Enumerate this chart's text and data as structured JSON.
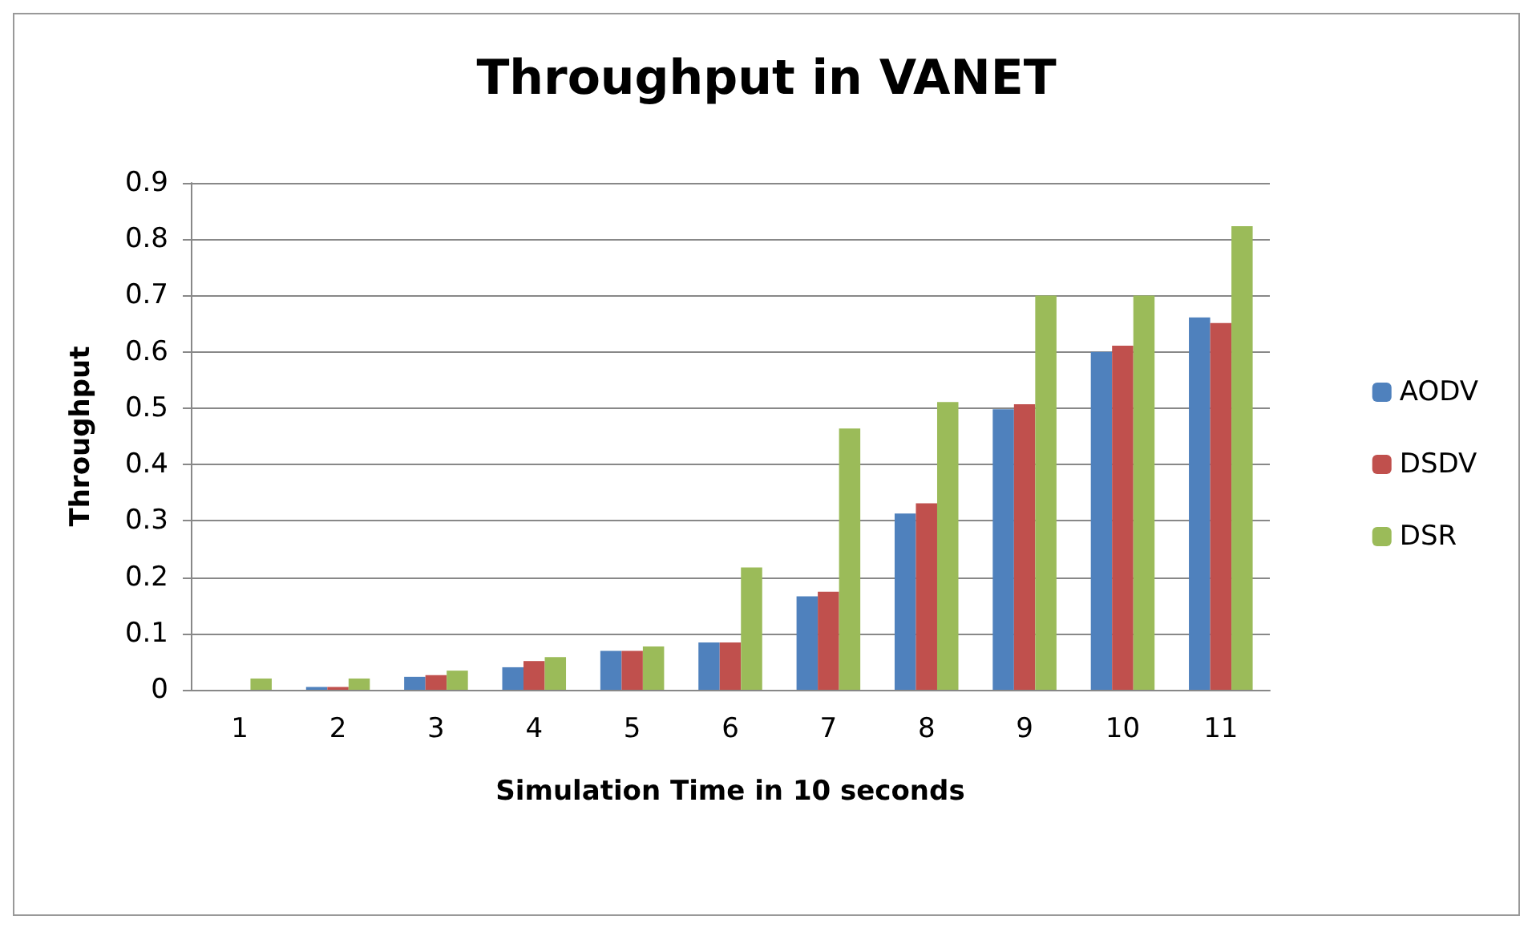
{
  "chart_data": {
    "type": "bar",
    "title": "Throughput in VANET",
    "xlabel": "Simulation Time in 10 seconds",
    "ylabel": "Throughput",
    "categories": [
      "1",
      "2",
      "3",
      "4",
      "5",
      "6",
      "7",
      "8",
      "9",
      "10",
      "11"
    ],
    "series": [
      {
        "name": "AODV",
        "color": "#4f81bd",
        "values": [
          0,
          0.005,
          0.023,
          0.04,
          0.069,
          0.084,
          0.166,
          0.313,
          0.498,
          0.6,
          0.661
        ]
      },
      {
        "name": "DSDV",
        "color": "#c0504d",
        "values": [
          0,
          0.005,
          0.026,
          0.051,
          0.069,
          0.084,
          0.174,
          0.331,
          0.507,
          0.611,
          0.651
        ]
      },
      {
        "name": "DSR",
        "color": "#9bbb59",
        "values": [
          0.02,
          0.02,
          0.034,
          0.058,
          0.077,
          0.217,
          0.464,
          0.511,
          0.7,
          0.7,
          0.823
        ]
      }
    ],
    "ylim": [
      0,
      0.9
    ],
    "yticks": [
      0,
      0.1,
      0.2,
      0.3,
      0.4,
      0.5,
      0.6,
      0.7,
      0.8,
      0.9
    ],
    "grid": "y",
    "legend": "right"
  }
}
